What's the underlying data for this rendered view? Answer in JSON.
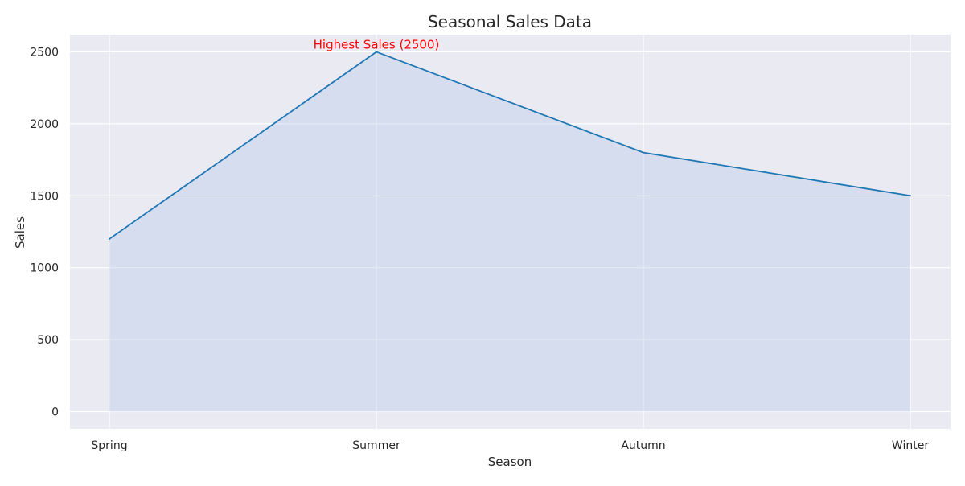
{
  "chart_data": {
    "type": "area",
    "title": "Seasonal Sales Data",
    "xlabel": "Season",
    "ylabel": "Sales",
    "categories": [
      "Spring",
      "Summer",
      "Autumn",
      "Winter"
    ],
    "series": [
      {
        "values": [
          1200,
          2500,
          1800,
          1500
        ]
      }
    ],
    "ylim": [
      -120,
      2620
    ],
    "yticks": [
      0,
      500,
      1000,
      1500,
      2000,
      2500
    ],
    "grid": true,
    "annotations": [
      {
        "text": "Highest Sales (2500)",
        "category": "Summer",
        "value": 2500,
        "color": "#ff0000"
      }
    ],
    "colors": {
      "line": "#1f77b4",
      "fill": "#aec7e8",
      "background": "#eaeaf2",
      "grid": "#ffffff"
    }
  }
}
